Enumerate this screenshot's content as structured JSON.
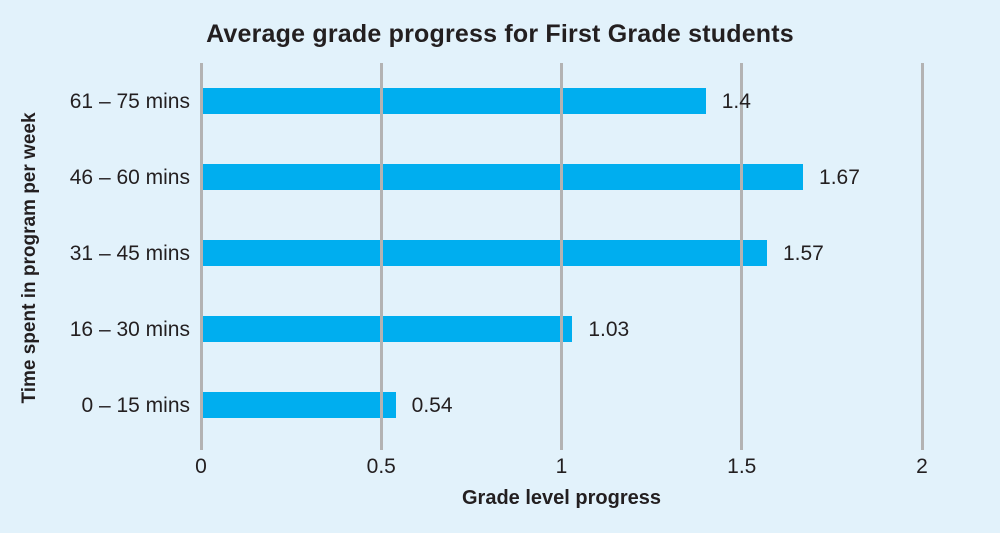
{
  "chart_data": {
    "type": "bar",
    "orientation": "horizontal",
    "title": "Average grade progress for First Grade students",
    "xlabel": "Grade level progress",
    "ylabel": "Time spent in program per week",
    "categories": [
      "61 – 75 mins",
      "46 – 60 mins",
      "31 – 45 mins",
      "16 – 30 mins",
      "0 – 15 mins"
    ],
    "values": [
      1.4,
      1.67,
      1.57,
      1.03,
      0.54
    ],
    "value_labels": [
      "1.4",
      "1.67",
      "1.57",
      "1.03",
      "0.54"
    ],
    "xlim": [
      0,
      2
    ],
    "xticks": [
      0,
      0.5,
      1,
      1.5,
      2
    ],
    "xtick_labels": [
      "0",
      "0.5",
      "1",
      "1.5",
      "2"
    ],
    "grid": "vertical-gridlines-over-bars",
    "legend": false,
    "colors": {
      "bar": "#00aeef",
      "background": "#e2f2fb",
      "gridline": "#b3b3b3",
      "text": "#231f20"
    }
  }
}
